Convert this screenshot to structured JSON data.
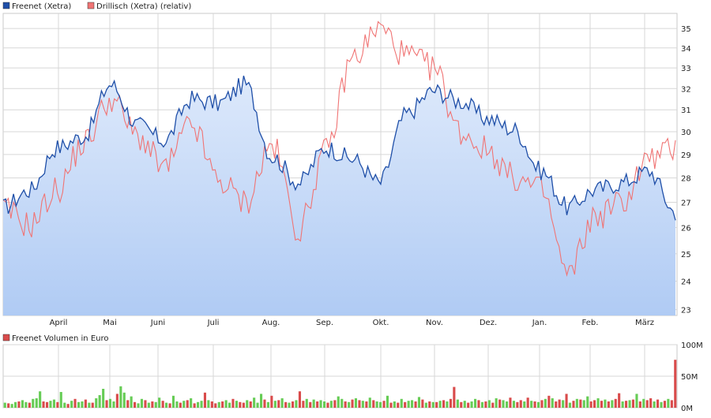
{
  "legend": {
    "series1": "Freenet (Xetra)",
    "series2": "Drillisch (Xetra) (relativ)",
    "volume": "Freenet Volumen in Euro"
  },
  "colors": {
    "freenet": "#1f4fa8",
    "drillisch": "#f07474",
    "fill_top": "#dde9fb",
    "fill_bottom": "#b0cbf4",
    "grid": "#d7d7d7",
    "vol_up": "#66cc55",
    "vol_down": "#d94b4b"
  },
  "chart_data": [
    {
      "type": "line",
      "title": "",
      "xlabel": "",
      "ylabel": "",
      "ylim": [
        22.8,
        35.8
      ],
      "yscale": "log",
      "yticks": [
        "23",
        "24",
        "25",
        "26",
        "27",
        "28",
        "29",
        "30",
        "31",
        "32",
        "33",
        "34",
        "35"
      ],
      "xticks": [
        "April",
        "Mai",
        "Juni",
        "Juli",
        "Aug.",
        "Sep.",
        "Okt.",
        "Nov.",
        "Dez.",
        "Jan.",
        "Feb.",
        "März"
      ],
      "grid": true,
      "legend_position": "top-left",
      "series": [
        {
          "name": "Freenet (Xetra)",
          "x": [
            "Mar",
            "Apr",
            "Apr-mid",
            "Mai",
            "Mai-mid",
            "Jun",
            "Jun-mid",
            "Jul",
            "Jul-mid",
            "Aug",
            "Aug-mid",
            "Sep",
            "Sep-mid",
            "Okt",
            "Okt-mid",
            "Nov",
            "Nov-mid",
            "Dez",
            "Dez-mid",
            "Jan",
            "Jan-mid",
            "Feb",
            "Feb-mid",
            "März",
            "März-mid",
            "end"
          ],
          "values": [
            26.8,
            27.5,
            29.3,
            29.8,
            32.2,
            30.3,
            29.6,
            31.5,
            31.3,
            32.2,
            28.9,
            27.8,
            29.3,
            28.8,
            27.8,
            30.8,
            31.9,
            31.4,
            30.6,
            30.1,
            28.3,
            26.8,
            27.5,
            27.8,
            28.3,
            26.6
          ]
        },
        {
          "name": "Drillisch (Xetra) (relativ)",
          "x": [
            "Mar",
            "Apr",
            "Apr-mid",
            "Mai",
            "Mai-mid",
            "Jun",
            "Jun-mid",
            "Jul",
            "Jul-mid",
            "Aug",
            "Aug-mid",
            "Sep",
            "Sep-mid",
            "Okt",
            "Okt-mid",
            "Nov",
            "Nov-mid",
            "Dez",
            "Dez-mid",
            "Jan",
            "Jan-mid",
            "Feb",
            "Feb-mid",
            "März",
            "März-mid",
            "end"
          ],
          "values": [
            26.7,
            26.1,
            27.5,
            29.5,
            31.5,
            29.8,
            28.4,
            30.3,
            27.9,
            27.0,
            29.4,
            25.9,
            29.1,
            33.5,
            35.0,
            33.6,
            33.0,
            30.0,
            29.2,
            28.0,
            27.5,
            24.2,
            26.4,
            27.0,
            28.8,
            29.2
          ]
        }
      ]
    },
    {
      "type": "bar",
      "title": "",
      "ylabel": "",
      "ylim": [
        0,
        100
      ],
      "yticks": [
        "0M",
        "50M",
        "100M"
      ],
      "unit": "Mio. Euro",
      "series": [
        {
          "name": "Freenet Volumen in Euro",
          "values": [
            8,
            7,
            6,
            9,
            10,
            12,
            9,
            8,
            14,
            15,
            26,
            10,
            9,
            11,
            13,
            9,
            25,
            8,
            6,
            11,
            14,
            9,
            10,
            13,
            8,
            8,
            15,
            20,
            30,
            12,
            14,
            10,
            22,
            34,
            24,
            12,
            18,
            9,
            7,
            14,
            12,
            8,
            10,
            9,
            16,
            11,
            8,
            7,
            19,
            10,
            8,
            11,
            12,
            15,
            7,
            9,
            11,
            24,
            12,
            10,
            7,
            9,
            10,
            12,
            8,
            14,
            11,
            9,
            8,
            12,
            10,
            16,
            8,
            22,
            13,
            9,
            19,
            11,
            12,
            15,
            9,
            8,
            10,
            12,
            26,
            11,
            14,
            9,
            13,
            10,
            12,
            10,
            8,
            11,
            12,
            18,
            14,
            10,
            9,
            13,
            15,
            12,
            11,
            10,
            16,
            12,
            10,
            9,
            11,
            19,
            8,
            10,
            8,
            14,
            9,
            11,
            12,
            10,
            17,
            13,
            8,
            10,
            9,
            9,
            11,
            12,
            10,
            14,
            33,
            13,
            9,
            11,
            8,
            10,
            14,
            12,
            9,
            10,
            12,
            8,
            15,
            13,
            12,
            10,
            16,
            11,
            9,
            12,
            10,
            16,
            11,
            10,
            9,
            12,
            14,
            19,
            15,
            10,
            13,
            12,
            22,
            8,
            11,
            14,
            13,
            12,
            18,
            10,
            12,
            15,
            11,
            13,
            10,
            12,
            14,
            23,
            10,
            11,
            12,
            13,
            22,
            10,
            14,
            12,
            15,
            10,
            13,
            9,
            11,
            14,
            12,
            76
          ],
          "up": [
            1,
            0,
            1,
            1,
            0,
            1,
            1,
            0,
            1,
            1,
            1,
            0,
            0,
            1,
            1,
            0,
            1,
            1,
            0,
            1,
            0,
            1,
            1,
            0,
            1,
            0,
            1,
            1,
            1,
            0,
            1,
            1,
            0,
            1,
            1,
            0,
            1,
            0,
            1,
            1,
            0,
            1,
            0,
            1,
            1,
            0,
            1,
            0,
            1,
            1,
            0,
            1,
            0,
            1,
            0,
            1,
            1,
            0,
            1,
            0,
            0,
            1,
            0,
            1,
            1,
            0,
            1,
            0,
            0,
            1,
            0,
            1,
            1,
            1,
            0,
            1,
            0,
            1,
            0,
            1,
            0,
            1,
            0,
            1,
            0,
            0,
            1,
            0,
            1,
            0,
            1,
            1,
            0,
            1,
            0,
            1,
            1,
            0,
            1,
            0,
            1,
            0,
            1,
            0,
            1,
            0,
            1,
            1,
            0,
            1,
            0,
            1,
            0,
            1,
            0,
            1,
            1,
            0,
            1,
            0,
            1,
            0,
            1,
            0,
            1,
            0,
            1,
            0,
            0,
            1,
            0,
            1,
            0,
            1,
            1,
            0,
            1,
            0,
            1,
            0,
            1,
            0,
            1,
            1,
            0,
            1,
            0,
            0,
            1,
            0,
            1,
            0,
            1,
            0,
            1,
            0,
            1,
            0,
            0,
            1,
            0,
            1,
            0,
            1,
            0,
            1,
            1,
            0,
            0,
            1,
            0,
            1,
            0,
            1,
            0,
            0,
            1,
            0,
            1,
            0,
            1,
            0,
            1,
            0,
            0,
            1,
            0,
            1,
            0,
            1,
            0
          ]
        }
      ]
    }
  ]
}
